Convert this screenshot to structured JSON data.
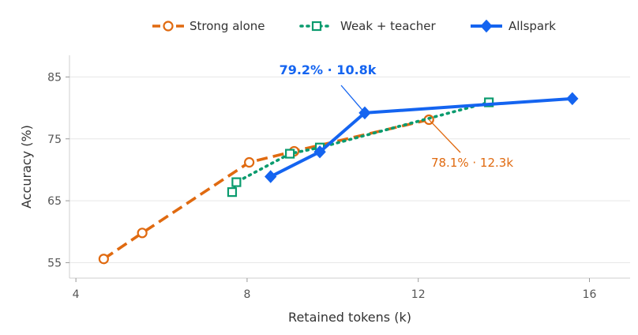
{
  "chart_data": {
    "type": "line",
    "xlabel": "Retained tokens (k)",
    "ylabel": "Accuracy (%)",
    "xlim": [
      3.85,
      16.95
    ],
    "ylim": [
      52.5,
      88.5
    ],
    "xticks": [
      4,
      8,
      12,
      16
    ],
    "yticks": [
      55,
      65,
      75,
      85
    ],
    "grid": "horizontal",
    "legend_position": "top",
    "series": [
      {
        "name": "Strong alone",
        "color": "#e06a10",
        "line_style": "dashed",
        "marker": "circle-open",
        "x": [
          4.65,
          5.55,
          8.05,
          9.1,
          12.25
        ],
        "y": [
          55.6,
          59.8,
          71.2,
          73.0,
          78.1
        ]
      },
      {
        "name": "Weak + teacher",
        "color": "#0a9b6e",
        "line_style": "dotted",
        "marker": "square-open",
        "x": [
          7.65,
          7.75,
          9.0,
          9.7,
          13.65
        ],
        "y": [
          66.4,
          68.0,
          72.6,
          73.6,
          80.9
        ]
      },
      {
        "name": "Allspark",
        "color": "#1464f0",
        "line_style": "solid",
        "marker": "diamond-filled",
        "x": [
          8.55,
          9.7,
          10.75,
          15.6
        ],
        "y": [
          68.9,
          72.9,
          79.2,
          81.5
        ]
      }
    ],
    "annotations": [
      {
        "text": "79.2% · 10.8k",
        "series": "Allspark",
        "point": [
          10.75,
          79.2
        ],
        "color": "#1464f0",
        "bold": true
      },
      {
        "text": "78.1% · 12.3k",
        "series": "Strong alone",
        "point": [
          12.25,
          78.1
        ],
        "color": "#e06a10",
        "bold": false
      }
    ]
  }
}
